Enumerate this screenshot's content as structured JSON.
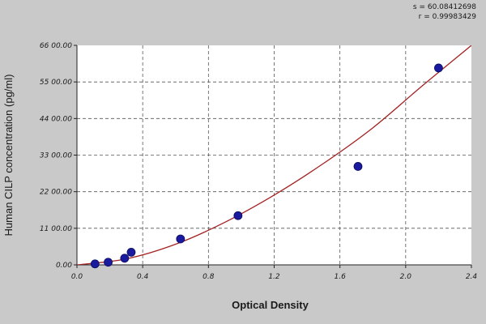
{
  "chart_data": {
    "type": "scatter",
    "title": "",
    "xlabel": "Optical Density",
    "ylabel": "Human CILP concentration (pg/ml)",
    "xlim": [
      0.0,
      2.4
    ],
    "ylim": [
      0,
      6600
    ],
    "x_ticks": [
      0.0,
      0.4,
      0.8,
      1.2,
      1.6,
      2.0,
      2.4
    ],
    "x_tick_labels": [
      "0.0",
      "0.4",
      "0.8",
      "1.2",
      "1.6",
      "2.0",
      "2.4"
    ],
    "y_ticks": [
      0,
      1100,
      2200,
      3300,
      4400,
      5500,
      6600
    ],
    "y_tick_labels": [
      "0.00",
      "11 00.00",
      "22 00.00",
      "33 00.00",
      "44 00.00",
      "55 00.00",
      "66 00.00"
    ],
    "grid": true,
    "x": [
      0.11,
      0.19,
      0.29,
      0.33,
      0.63,
      0.98,
      1.71,
      2.2
    ],
    "y": [
      30,
      80,
      200,
      380,
      780,
      1480,
      2960,
      5920
    ],
    "fit_curve": {
      "x": [
        0.0,
        0.3,
        0.6,
        0.9,
        1.2,
        1.5,
        1.8,
        2.1,
        2.4
      ],
      "y": [
        0,
        180,
        620,
        1280,
        2100,
        3050,
        4120,
        5380,
        6600
      ]
    },
    "annotations": {
      "s": "s = 60.08412698",
      "r": "r = 0.99983429"
    },
    "colors": {
      "background": "#c9c9c9",
      "plot_area": "#ffffff",
      "grid": "#555555",
      "points": "#1a1a9e",
      "curve": "#a32222"
    }
  }
}
